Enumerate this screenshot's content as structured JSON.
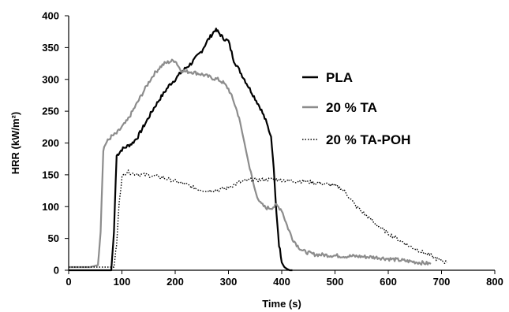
{
  "chart_data": {
    "type": "line",
    "title": "",
    "xlabel": "Time (s)",
    "ylabel": "HRR (kW/m²)",
    "xlim": [
      0,
      800
    ],
    "ylim": [
      0,
      400
    ],
    "x_ticks": [
      "0",
      "100",
      "200",
      "300",
      "400",
      "500",
      "600",
      "700",
      "800"
    ],
    "y_ticks": [
      "0",
      "50",
      "100",
      "150",
      "200",
      "250",
      "300",
      "350",
      "400"
    ],
    "grid": false,
    "legend_position": "right",
    "series": [
      {
        "name": "PLA",
        "color": "#000000",
        "style": "solid",
        "x": [
          0,
          40,
          80,
          85,
          90,
          95,
          100,
          110,
          120,
          130,
          140,
          150,
          160,
          170,
          180,
          190,
          200,
          210,
          220,
          230,
          240,
          250,
          260,
          270,
          275,
          280,
          285,
          290,
          300,
          310,
          320,
          330,
          340,
          350,
          360,
          370,
          380,
          385,
          390,
          395,
          400,
          405,
          410,
          415,
          420
        ],
        "y": [
          0,
          0,
          0,
          60,
          180,
          185,
          190,
          195,
          200,
          210,
          225,
          240,
          255,
          268,
          280,
          292,
          300,
          310,
          318,
          325,
          335,
          345,
          360,
          372,
          378,
          375,
          370,
          365,
          360,
          330,
          315,
          300,
          285,
          270,
          255,
          235,
          210,
          160,
          90,
          40,
          15,
          5,
          2,
          0,
          0
        ]
      },
      {
        "name": "20 % TA",
        "color": "#8c8c8c",
        "style": "solid",
        "x": [
          0,
          40,
          55,
          60,
          65,
          70,
          75,
          80,
          90,
          100,
          110,
          120,
          130,
          140,
          150,
          160,
          170,
          180,
          190,
          200,
          210,
          220,
          230,
          240,
          250,
          260,
          270,
          280,
          290,
          300,
          310,
          320,
          330,
          340,
          350,
          360,
          370,
          380,
          390,
          400,
          410,
          420,
          430,
          440,
          460,
          480,
          500,
          520,
          540,
          560,
          580,
          600,
          620,
          640,
          660,
          680
        ],
        "y": [
          5,
          5,
          8,
          60,
          190,
          200,
          205,
          210,
          215,
          225,
          235,
          250,
          265,
          280,
          295,
          308,
          318,
          325,
          328,
          330,
          315,
          312,
          312,
          310,
          308,
          305,
          302,
          300,
          295,
          285,
          265,
          240,
          200,
          160,
          125,
          105,
          98,
          98,
          102,
          95,
          70,
          50,
          38,
          30,
          25,
          24,
          23,
          22,
          22,
          21,
          20,
          18,
          16,
          14,
          12,
          10
        ]
      },
      {
        "name": "20 % TA-POH",
        "color": "#000000",
        "style": "dotted",
        "x": [
          0,
          60,
          85,
          90,
          95,
          100,
          105,
          110,
          120,
          140,
          160,
          180,
          200,
          220,
          240,
          260,
          280,
          300,
          320,
          340,
          360,
          380,
          400,
          420,
          440,
          460,
          480,
          500,
          510,
          520,
          540,
          560,
          580,
          600,
          620,
          640,
          660,
          680,
          690,
          700,
          710
        ],
        "y": [
          5,
          5,
          5,
          40,
          110,
          145,
          152,
          155,
          152,
          150,
          148,
          145,
          140,
          135,
          128,
          125,
          126,
          130,
          138,
          142,
          142,
          143,
          142,
          140,
          140,
          138,
          136,
          133,
          130,
          122,
          100,
          85,
          70,
          58,
          48,
          38,
          30,
          23,
          18,
          15,
          12
        ]
      }
    ]
  }
}
